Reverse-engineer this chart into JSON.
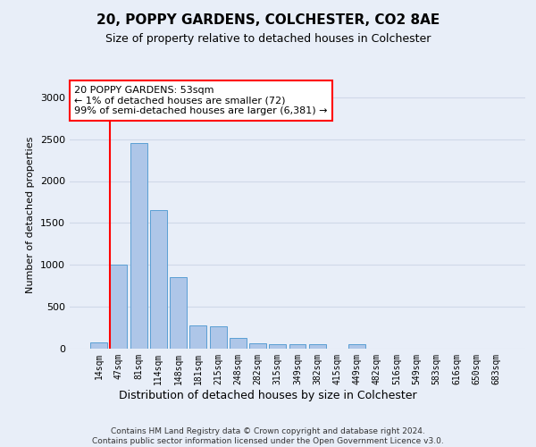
{
  "title1": "20, POPPY GARDENS, COLCHESTER, CO2 8AE",
  "title2": "Size of property relative to detached houses in Colchester",
  "xlabel": "Distribution of detached houses by size in Colchester",
  "ylabel": "Number of detached properties",
  "categories": [
    "14sqm",
    "47sqm",
    "81sqm",
    "114sqm",
    "148sqm",
    "181sqm",
    "215sqm",
    "248sqm",
    "282sqm",
    "315sqm",
    "349sqm",
    "382sqm",
    "415sqm",
    "449sqm",
    "482sqm",
    "516sqm",
    "549sqm",
    "583sqm",
    "616sqm",
    "650sqm",
    "683sqm"
  ],
  "values": [
    70,
    1000,
    2450,
    1650,
    850,
    280,
    270,
    130,
    60,
    55,
    55,
    50,
    3,
    50,
    3,
    3,
    3,
    3,
    3,
    3,
    3
  ],
  "bar_color": "#aec6e8",
  "bar_edge_color": "#5a9fd4",
  "annotation_text_line1": "20 POPPY GARDENS: 53sqm",
  "annotation_text_line2": "← 1% of detached houses are smaller (72)",
  "annotation_text_line3": "99% of semi-detached houses are larger (6,381) →",
  "annotation_box_color": "white",
  "annotation_box_edge_color": "red",
  "vline_color": "red",
  "vline_x": 0.55,
  "ylim": [
    0,
    3200
  ],
  "yticks": [
    0,
    500,
    1000,
    1500,
    2000,
    2500,
    3000
  ],
  "grid_color": "#d0d8e8",
  "background_color": "#e8eef8",
  "footer1": "Contains HM Land Registry data © Crown copyright and database right 2024.",
  "footer2": "Contains public sector information licensed under the Open Government Licence v3.0."
}
